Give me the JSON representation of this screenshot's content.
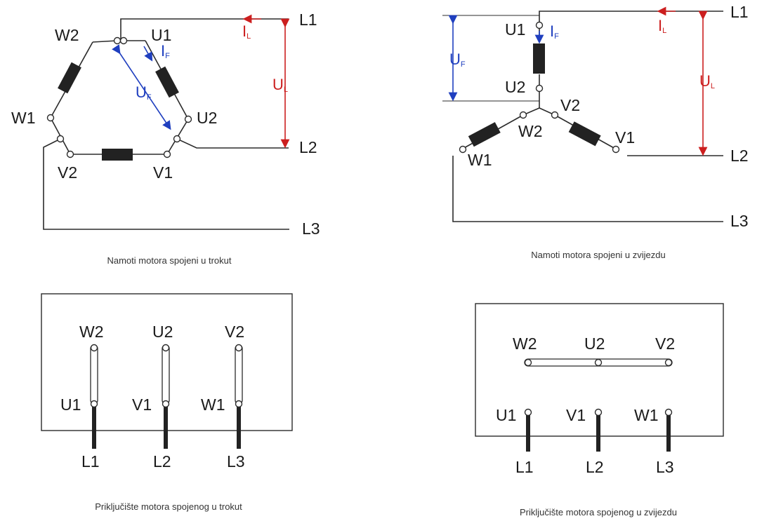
{
  "colors": {
    "line_current": "#cc1f1f",
    "phase_voltage": "#1f3fbf",
    "wire": "#2b2b2b"
  },
  "delta": {
    "terminals": {
      "w2": "W2",
      "u1": "U1",
      "w1": "W1",
      "u2": "U2",
      "v2": "V2",
      "v1": "V1"
    },
    "lines": {
      "l1": "L1",
      "l2": "L2",
      "l3": "L3"
    },
    "current": {
      "main": "I",
      "line_sub": "L",
      "phase_sub": "F"
    },
    "voltage": {
      "main": "U",
      "line_sub": "L",
      "phase_sub": "F"
    },
    "caption": "Namoti motora spojeni u trokut"
  },
  "star": {
    "terminals": {
      "u1": "U1",
      "u2": "U2",
      "v2": "V2",
      "w2": "W2",
      "v1": "V1",
      "w1": "W1"
    },
    "lines": {
      "l1": "L1",
      "l2": "L2",
      "l3": "L3"
    },
    "current": {
      "main": "I",
      "line_sub": "L",
      "phase_sub": "F"
    },
    "voltage": {
      "main": "U",
      "line_sub": "L",
      "phase_sub": "F"
    },
    "caption": "Namoti motora spojeni u zvijezdu"
  },
  "delta_box": {
    "top": [
      "W2",
      "U2",
      "V2"
    ],
    "bottom": [
      "U1",
      "V1",
      "W1"
    ],
    "lines": [
      "L1",
      "L2",
      "L3"
    ],
    "caption": "Priključište motora spojenog u trokut"
  },
  "star_box": {
    "top": [
      "W2",
      "U2",
      "V2"
    ],
    "bottom": [
      "U1",
      "V1",
      "W1"
    ],
    "lines": [
      "L1",
      "L2",
      "L3"
    ],
    "caption": "Priključište motora spojenog u zvijezdu"
  }
}
